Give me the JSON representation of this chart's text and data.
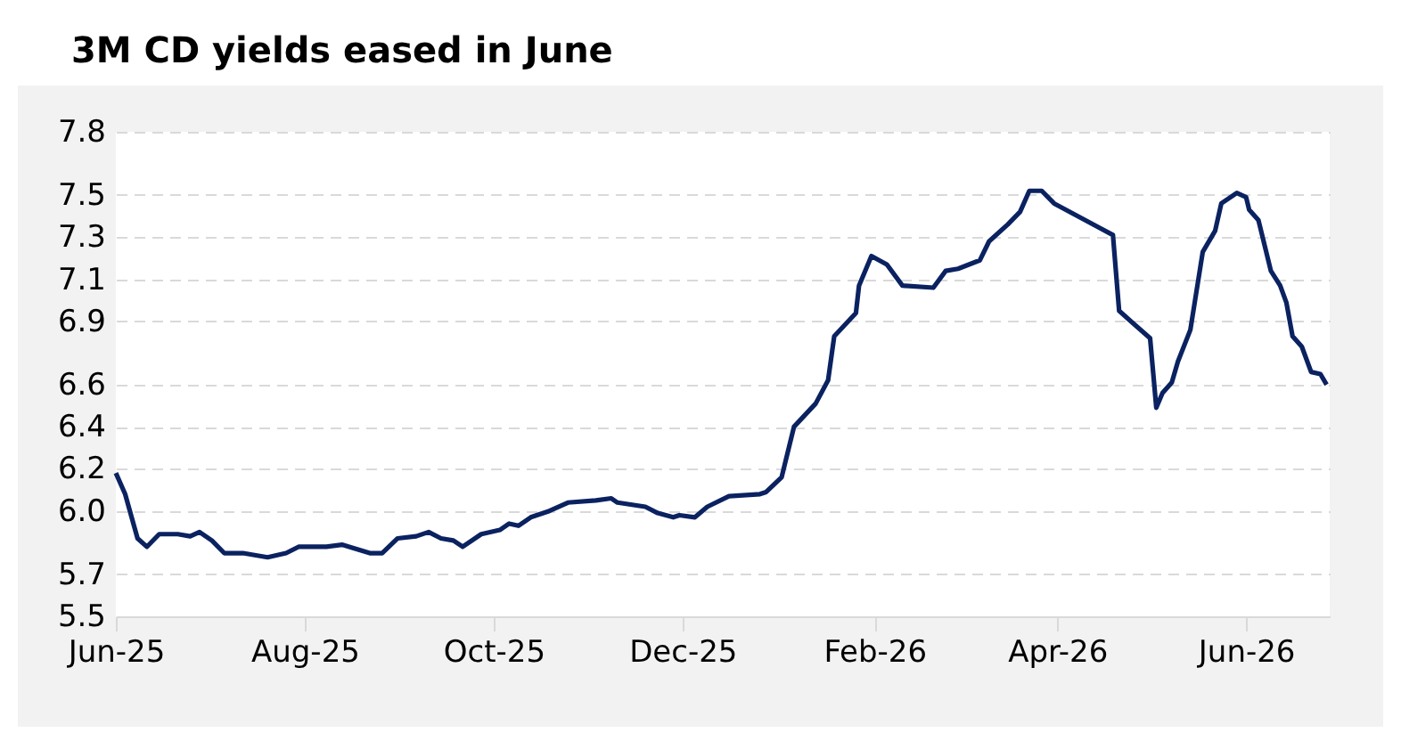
{
  "chart_data": {
    "type": "line",
    "title": "3M CD yields eased in June",
    "x": [
      "2025-06-01",
      "2025-06-04",
      "2025-06-08",
      "2025-06-11",
      "2025-06-15",
      "2025-06-21",
      "2025-06-25",
      "2025-06-28",
      "2025-07-02",
      "2025-07-06",
      "2025-07-12",
      "2025-07-20",
      "2025-07-26",
      "2025-07-30",
      "2025-08-08",
      "2025-08-13",
      "2025-08-22",
      "2025-08-26",
      "2025-08-31",
      "2025-09-06",
      "2025-09-10",
      "2025-09-14",
      "2025-09-18",
      "2025-09-21",
      "2025-09-27",
      "2025-10-03",
      "2025-10-06",
      "2025-10-09",
      "2025-10-13",
      "2025-10-19",
      "2025-10-25",
      "2025-11-03",
      "2025-11-08",
      "2025-11-10",
      "2025-11-19",
      "2025-11-23",
      "2025-11-28",
      "2025-11-30",
      "2025-12-05",
      "2025-12-09",
      "2025-12-16",
      "2025-12-26",
      "2025-12-28",
      "2026-01-02",
      "2026-01-06",
      "2026-01-13",
      "2026-01-17",
      "2026-01-19",
      "2026-01-26",
      "2026-01-27",
      "2026-01-31",
      "2026-02-05",
      "2026-02-10",
      "2026-02-20",
      "2026-02-24",
      "2026-02-28",
      "2026-03-07",
      "2026-03-10",
      "2026-03-16",
      "2026-03-20",
      "2026-03-23",
      "2026-03-27",
      "2026-03-31",
      "2026-04-19",
      "2026-04-21",
      "2026-05-01",
      "2026-05-03",
      "2026-05-05",
      "2026-05-08",
      "2026-05-10",
      "2026-05-14",
      "2026-05-18",
      "2026-05-22",
      "2026-05-24",
      "2026-05-29",
      "2026-06-01",
      "2026-06-02",
      "2026-06-05",
      "2026-06-09",
      "2026-06-12",
      "2026-06-14",
      "2026-06-16",
      "2026-06-19",
      "2026-06-22",
      "2026-06-25",
      "2026-06-27"
    ],
    "series": [
      {
        "color": "#0b2261",
        "values": [
          6.18,
          6.08,
          5.87,
          5.83,
          5.89,
          5.89,
          5.88,
          5.9,
          5.86,
          5.8,
          5.8,
          5.78,
          5.8,
          5.83,
          5.83,
          5.84,
          5.8,
          5.8,
          5.87,
          5.88,
          5.9,
          5.87,
          5.86,
          5.83,
          5.89,
          5.91,
          5.94,
          5.93,
          5.97,
          6.0,
          6.04,
          6.05,
          6.06,
          6.04,
          6.02,
          5.99,
          5.97,
          5.98,
          5.97,
          6.02,
          6.07,
          6.08,
          6.09,
          6.16,
          6.4,
          6.51,
          6.62,
          6.83,
          6.94,
          7.07,
          7.21,
          7.17,
          7.07,
          7.06,
          7.14,
          7.15,
          7.19,
          7.28,
          7.36,
          7.42,
          7.52,
          7.52,
          7.46,
          7.31,
          6.95,
          6.82,
          6.49,
          6.56,
          6.61,
          6.71,
          6.86,
          7.23,
          7.33,
          7.46,
          7.51,
          7.49,
          7.43,
          7.38,
          7.14,
          7.07,
          6.99,
          6.83,
          6.78,
          6.66,
          6.65,
          6.6
        ]
      }
    ],
    "xlim": [
      "2025-06-01",
      "2026-06-28"
    ],
    "xticks": [
      {
        "value": "2025-06-01",
        "label": "Jun-25"
      },
      {
        "value": "2025-08-01",
        "label": "Aug-25"
      },
      {
        "value": "2025-10-01",
        "label": "Oct-25"
      },
      {
        "value": "2025-12-01",
        "label": "Dec-25"
      },
      {
        "value": "2026-02-01",
        "label": "Feb-26"
      },
      {
        "value": "2026-04-01",
        "label": "Apr-26"
      },
      {
        "value": "2026-06-01",
        "label": "Jun-26"
      }
    ],
    "ylim": [
      5.5,
      7.8
    ],
    "yticks": [
      {
        "value": 5.5,
        "label": "5.5"
      },
      {
        "value": 5.7,
        "label": "5.7"
      },
      {
        "value": 6.0,
        "label": "6.0"
      },
      {
        "value": 6.2,
        "label": "6.2"
      },
      {
        "value": 6.4,
        "label": "6.4"
      },
      {
        "value": 6.6,
        "label": "6.6"
      },
      {
        "value": 6.9,
        "label": "6.9"
      },
      {
        "value": 7.1,
        "label": "7.1"
      },
      {
        "value": 7.3,
        "label": "7.3"
      },
      {
        "value": 7.5,
        "label": "7.5"
      },
      {
        "value": 7.8,
        "label": "7.8"
      }
    ],
    "grid": "y",
    "line_style": "solid"
  }
}
